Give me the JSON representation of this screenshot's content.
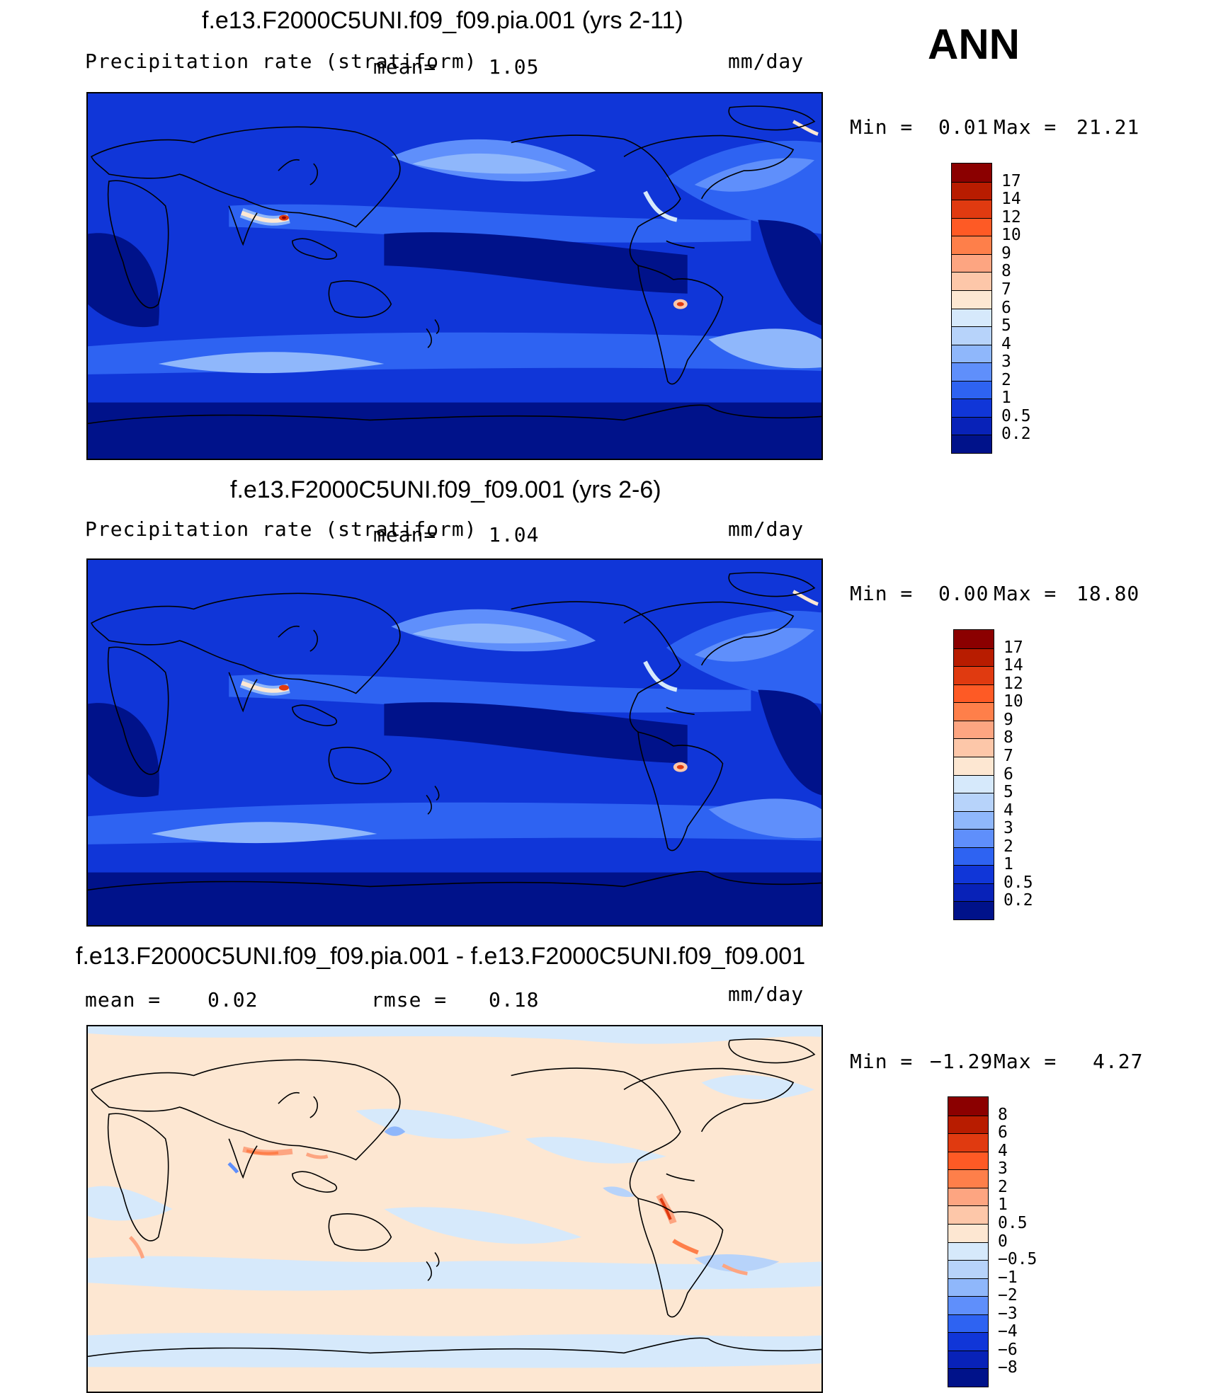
{
  "season": "ANN",
  "panels": [
    {
      "title": "f.e13.F2000C5UNI.f09_f09.pia.001 (yrs 2-11)",
      "variable": "Precipitation rate (stratiform)",
      "mean_label": "mean=",
      "mean_value": "1.05",
      "units": "mm/day",
      "min_label": "Min =",
      "min_value": "0.01",
      "max_label": "Max =",
      "max_value": "21.21",
      "colorbar_labels": [
        "17",
        "14",
        "12",
        "10",
        "9",
        "8",
        "7",
        "6",
        "5",
        "4",
        "3",
        "2",
        "1",
        "0.5",
        "0.2"
      ],
      "colorbar_colors": [
        "#8b0000",
        "#b81c00",
        "#e03a10",
        "#fe5a25",
        "#fe7f4a",
        "#fda581",
        "#fdc7a9",
        "#fde7d2",
        "#d6e9fb",
        "#b7d3fa",
        "#8fb7fb",
        "#5f8ffb",
        "#2e63f2",
        "#1036d8",
        "#0822b8",
        "#00128a"
      ]
    },
    {
      "title": "f.e13.F2000C5UNI.f09_f09.001 (yrs 2-6)",
      "variable": "Precipitation rate (stratiform)",
      "mean_label": "mean=",
      "mean_value": "1.04",
      "units": "mm/day",
      "min_label": "Min =",
      "min_value": "0.00",
      "max_label": "Max =",
      "max_value": "18.80",
      "colorbar_labels": [
        "17",
        "14",
        "12",
        "10",
        "9",
        "8",
        "7",
        "6",
        "5",
        "4",
        "3",
        "2",
        "1",
        "0.5",
        "0.2"
      ],
      "colorbar_colors": [
        "#8b0000",
        "#b81c00",
        "#e03a10",
        "#fe5a25",
        "#fe7f4a",
        "#fda581",
        "#fdc7a9",
        "#fde7d2",
        "#d6e9fb",
        "#b7d3fa",
        "#8fb7fb",
        "#5f8ffb",
        "#2e63f2",
        "#1036d8",
        "#0822b8",
        "#00128a"
      ]
    },
    {
      "title": "f.e13.F2000C5UNI.f09_f09.pia.001 - f.e13.F2000C5UNI.f09_f09.001",
      "mean_label": "mean =",
      "mean_value": "0.02",
      "rmse_label": "rmse =",
      "rmse_value": "0.18",
      "units": "mm/day",
      "min_label": "Min =",
      "min_value": "−1.29",
      "max_label": "Max =",
      "max_value": "4.27",
      "colorbar_labels": [
        "8",
        "6",
        "4",
        "3",
        "2",
        "1",
        "0.5",
        "0",
        "−0.5",
        "−1",
        "−2",
        "−3",
        "−4",
        "−6",
        "−8"
      ],
      "colorbar_colors": [
        "#8b0000",
        "#b81c00",
        "#e03a10",
        "#fe5a25",
        "#fe7f4a",
        "#fda581",
        "#fdc7a9",
        "#fde7d2",
        "#d6e9fb",
        "#b7d3fa",
        "#8fb7fb",
        "#5f8ffb",
        "#2e63f2",
        "#1036d8",
        "#0822b8",
        "#00128a"
      ]
    }
  ]
}
